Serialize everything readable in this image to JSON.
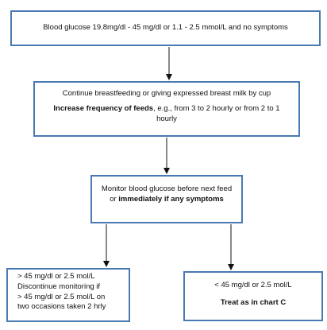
{
  "nodes": {
    "start": {
      "text": "Blood glucose 19.8mg/dl - 45 mg/dl or 1.1 -  2.5 mmol/L and no symptoms"
    },
    "feeding": {
      "text": "Continue breastfeeding or giving expressed breast milk by cup",
      "emphasis": "Increase frequency of feeds",
      "detail": ", e.g., from 3 to 2 hourly or from 2 to 1 hourly"
    },
    "monitor": {
      "text": "Monitor blood glucose before next feed or ",
      "emphasis": "immediately if any symptoms"
    },
    "above": {
      "lines": [
        "> 45 mg/dl or 2.5 mol/L",
        "Discontinue monitoring if",
        "> 45 mg/dl or 2.5 mol/L on",
        "two occasions taken 2 hrly"
      ]
    },
    "below": {
      "text": "< 45 mg/dl or 2.5 mol/L",
      "emphasis": "Treat as in chart C"
    }
  },
  "edges": [
    {
      "from": "start",
      "to": "feeding"
    },
    {
      "from": "feeding",
      "to": "monitor"
    },
    {
      "from": "monitor",
      "to": "above"
    },
    {
      "from": "monitor",
      "to": "below"
    }
  ],
  "colors": {
    "box_border": "#4a7ab2",
    "arrow": "#111111"
  }
}
